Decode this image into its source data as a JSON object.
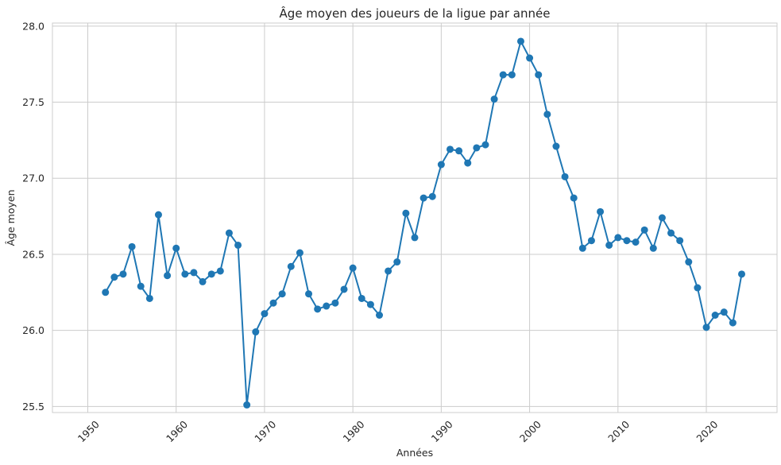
{
  "chart_data": {
    "type": "line",
    "title": "Âge moyen des joueurs de la ligue par année",
    "xlabel": "Années",
    "ylabel": "Âge moyen",
    "xlim": [
      1946,
      2028
    ],
    "ylim": [
      25.46,
      28.02
    ],
    "x_ticks": [
      1950,
      1960,
      1970,
      1980,
      1990,
      2000,
      2010,
      2020
    ],
    "y_ticks": [
      25.5,
      26.0,
      26.5,
      27.0,
      27.5,
      28.0
    ],
    "y_tick_labels": [
      "25.5",
      "26.0",
      "26.5",
      "27.0",
      "27.5",
      "28.0"
    ],
    "grid": true,
    "line_color": "#1f77b4",
    "marker": "circle",
    "series": [
      {
        "x": [
          1952,
          1953,
          1954,
          1955,
          1956,
          1957,
          1958,
          1959,
          1960,
          1961,
          1962,
          1963,
          1964,
          1965,
          1966,
          1967,
          1968,
          1969,
          1970,
          1971,
          1972,
          1973,
          1974,
          1975,
          1976,
          1977,
          1978,
          1979,
          1980,
          1981,
          1982,
          1983,
          1984,
          1985,
          1986,
          1987,
          1988,
          1989,
          1990,
          1991,
          1992,
          1993,
          1994,
          1995,
          1996,
          1997,
          1998,
          1999,
          2000,
          2001,
          2002,
          2003,
          2004,
          2005,
          2006,
          2007,
          2008,
          2009,
          2010,
          2011,
          2012,
          2013,
          2014,
          2015,
          2016,
          2017,
          2018,
          2019,
          2020,
          2021,
          2022,
          2023,
          2024
        ],
        "y": [
          26.25,
          26.35,
          26.37,
          26.55,
          26.29,
          26.21,
          26.76,
          26.36,
          26.54,
          26.37,
          26.38,
          26.32,
          26.37,
          26.39,
          26.64,
          26.56,
          25.51,
          25.99,
          26.11,
          26.18,
          26.24,
          26.42,
          26.51,
          26.24,
          26.14,
          26.16,
          26.18,
          26.27,
          26.41,
          26.21,
          26.17,
          26.1,
          26.39,
          26.45,
          26.77,
          26.61,
          26.87,
          26.88,
          27.09,
          27.19,
          27.18,
          27.1,
          27.2,
          27.22,
          27.52,
          27.68,
          27.68,
          27.9,
          27.79,
          27.68,
          27.42,
          27.21,
          27.01,
          26.87,
          26.54,
          26.59,
          26.78,
          26.56,
          26.61,
          26.59,
          26.58,
          26.66,
          26.54,
          26.74,
          26.64,
          26.59,
          26.45,
          26.28,
          26.02,
          26.1,
          26.12,
          26.05,
          26.37
        ]
      }
    ]
  }
}
